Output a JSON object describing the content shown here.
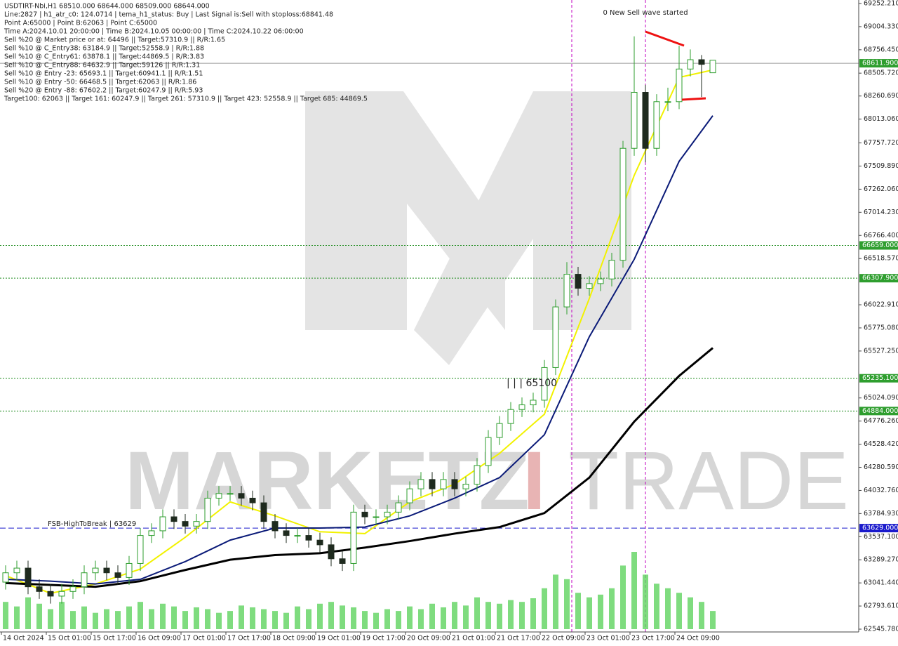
{
  "chart_data": {
    "type": "candlestick",
    "info_lines": [
      "USDTIRT-Nbi,H1  68510.000 68644.000 68509.000 68644.000",
      "Line:2827 | h1_atr_c0: 124.0714 | tema_h1_status: Buy | Last Signal is:Sell with stoploss:68841.48",
      "Point A:65000 | Point B:62063 | Point C:65000",
      "Time A:2024.10.01 20:00:00 | Time B:2024.10.05 00:00:00 | Time C:2024.10.22 06:00:00",
      "Sell %20 @ Market price or at: 64496 || Target:57310.9 || R/R:1.65",
      "Sell %10 @ C_Entry38: 63184.9 || Target:52558.9 | R/R:1.88",
      "Sell %10 @ C_Entry61: 63878.1 || Target:44869.5 | R/R:3.83",
      "Sell %10 @ C_Entry88: 64632.9 || Target:59126 || R/R:1.31",
      "Sell %10 @ Entry -23: 65693.1 || Target:60941.1 || R/R:1.51",
      "Sell %10 @ Entry -50: 66468.5 || Target:62063 || R/R:1.86",
      "Sell %20 @ Entry -88: 67602.2 || Target:60247.9 || R/R:5.93",
      "Target100: 62063 || Target 161: 60247.9 || Target 261: 57310.9 || Target 423: 52558.9 || Target 685: 44869.5"
    ],
    "annotations": [
      "0 New Sell wave started",
      "FSB-HighToBreak | 63629",
      "| | | 65100"
    ],
    "watermark": [
      "MARKETZ",
      "I",
      "TRADE"
    ],
    "categories": [
      "14 Oct 2024",
      null,
      null,
      null,
      "15 Oct 01:00",
      null,
      null,
      null,
      "15 Oct 17:00",
      null,
      null,
      null,
      "16 Oct 09:00",
      null,
      null,
      null,
      "17 Oct 01:00",
      null,
      null,
      null,
      "17 Oct 17:00",
      null,
      null,
      null,
      "18 Oct 09:00",
      null,
      null,
      null,
      "19 Oct 01:00",
      null,
      null,
      null,
      "19 Oct 17:00",
      null,
      null,
      null,
      "20 Oct 09:00",
      null,
      null,
      null,
      "21 Oct 01:00",
      null,
      null,
      null,
      "21 Oct 17:00",
      null,
      null,
      null,
      "22 Oct 09:00",
      null,
      null,
      null,
      "23 Oct 01:00",
      null,
      null,
      null,
      "23 Oct 17:00",
      null,
      null,
      null,
      "24 Oct 09:00",
      null,
      null,
      null
    ],
    "open": [
      63050,
      63150,
      63200,
      63000,
      62950,
      62900,
      62950,
      63000,
      63150,
      63200,
      63150,
      63100,
      63250,
      63550,
      63600,
      63750,
      63700,
      63650,
      63700,
      63950,
      64000,
      64000,
      63950,
      63900,
      63700,
      63600,
      63550,
      63550,
      63500,
      63450,
      63300,
      63250,
      63800,
      63750,
      63750,
      63800,
      63900,
      64050,
      64150,
      64050,
      64150,
      64050,
      64100,
      64300,
      64600,
      64750,
      64900,
      64950,
      65000,
      65350,
      66000,
      66350,
      66200,
      66250,
      66300,
      66500,
      67700,
      68300,
      67700,
      68200,
      68200,
      68550,
      68650,
      68510
    ],
    "high": [
      63230,
      63280,
      63280,
      63080,
      63030,
      63030,
      63080,
      63230,
      63280,
      63280,
      63230,
      63330,
      63630,
      63680,
      63830,
      63830,
      63780,
      63780,
      64030,
      64080,
      64080,
      64080,
      64030,
      63980,
      63780,
      63680,
      63630,
      63630,
      63580,
      63530,
      63380,
      63880,
      63880,
      63830,
      63880,
      63980,
      64130,
      64230,
      64230,
      64230,
      64230,
      64180,
      64380,
      64680,
      64830,
      64980,
      65030,
      65080,
      65430,
      66080,
      66480,
      66430,
      66330,
      66380,
      66580,
      67780,
      68900,
      68380,
      68280,
      68350,
      68800,
      68760,
      68700,
      68644
    ],
    "low": [
      62970,
      63070,
      62920,
      62870,
      62820,
      62820,
      62870,
      62920,
      63070,
      63070,
      63020,
      63020,
      63170,
      63470,
      63520,
      63620,
      63570,
      63570,
      63620,
      63870,
      63920,
      63870,
      63820,
      63620,
      63520,
      63470,
      63470,
      63420,
      63370,
      63220,
      63170,
      63170,
      63670,
      63670,
      63670,
      63720,
      63820,
      63970,
      63970,
      63970,
      63970,
      63970,
      64020,
      64220,
      64520,
      64670,
      64820,
      64870,
      64920,
      65270,
      65920,
      66120,
      66120,
      66170,
      66220,
      66420,
      67620,
      67550,
      67620,
      68100,
      68120,
      68470,
      68250,
      68509
    ],
    "close": [
      63150,
      63200,
      63000,
      62950,
      62900,
      62950,
      63000,
      63150,
      63200,
      63150,
      63100,
      63250,
      63550,
      63600,
      63750,
      63700,
      63650,
      63700,
      63950,
      64000,
      64000,
      63950,
      63900,
      63700,
      63600,
      63550,
      63550,
      63500,
      63450,
      63300,
      63250,
      63800,
      63750,
      63750,
      63800,
      63900,
      64050,
      64150,
      64050,
      64150,
      64050,
      64100,
      64300,
      64600,
      64750,
      64900,
      64950,
      65000,
      65350,
      66000,
      66350,
      66200,
      66250,
      66300,
      66500,
      67700,
      68300,
      67700,
      68200,
      68200,
      68550,
      68650,
      68600,
      68644
    ],
    "volume": [
      30,
      25,
      35,
      28,
      22,
      30,
      20,
      25,
      18,
      22,
      20,
      25,
      30,
      22,
      28,
      25,
      20,
      24,
      22,
      18,
      20,
      26,
      24,
      22,
      20,
      18,
      25,
      22,
      28,
      30,
      26,
      24,
      20,
      18,
      22,
      20,
      25,
      22,
      28,
      24,
      30,
      26,
      35,
      30,
      28,
      32,
      30,
      34,
      45,
      60,
      55,
      40,
      35,
      38,
      45,
      70,
      85,
      60,
      50,
      45,
      40,
      35,
      30,
      20
    ],
    "up_color": "#2e9e2e",
    "down_color": "#1e2a1e",
    "volume_color": "#5fd35f",
    "ma_lines": [
      {
        "color": "#f2f200",
        "x": [
          0,
          4,
          8,
          12,
          16,
          20,
          24,
          28,
          32,
          36,
          40,
          44,
          48,
          52,
          56,
          60,
          63
        ],
        "values": [
          63120,
          62930,
          63030,
          63190,
          63530,
          63910,
          63760,
          63590,
          63570,
          63910,
          64100,
          64430,
          64850,
          66090,
          67410,
          68460,
          68540
        ]
      },
      {
        "color": "#0a1a78",
        "x": [
          0,
          4,
          8,
          12,
          16,
          20,
          24,
          28,
          32,
          36,
          40,
          44,
          48,
          52,
          56,
          60,
          63
        ],
        "values": [
          63080,
          63060,
          63030,
          63080,
          63270,
          63500,
          63630,
          63630,
          63640,
          63760,
          63950,
          64170,
          64630,
          65680,
          66510,
          67560,
          68050
        ]
      },
      {
        "color": "#000000",
        "x": [
          0,
          4,
          8,
          12,
          16,
          20,
          24,
          28,
          32,
          36,
          40,
          44,
          48,
          52,
          56,
          60,
          63
        ],
        "values": [
          63040,
          63020,
          63000,
          63060,
          63180,
          63290,
          63340,
          63360,
          63420,
          63490,
          63570,
          63640,
          63790,
          64170,
          64770,
          65260,
          65560
        ]
      }
    ],
    "levels": [
      {
        "value": 68611.9,
        "label": "68611.900",
        "color": "#9a9a9a",
        "label_bg": "#2e9e2e",
        "dash": false
      },
      {
        "value": 66659,
        "label": "66659.000",
        "color": "#1a8a1a",
        "label_bg": "#2e9e2e",
        "dash": true
      },
      {
        "value": 66307.9,
        "label": "66307.900",
        "color": "#1a8a1a",
        "label_bg": "#2e9e2e",
        "dash": true
      },
      {
        "value": 65235.1,
        "label": "65235.100",
        "color": "#1a8a1a",
        "label_bg": "#2e9e2e",
        "dash": true
      },
      {
        "value": 64884,
        "label": "64884.000",
        "color": "#1a8a1a",
        "label_bg": "#2e9e2e",
        "dash": true
      },
      {
        "value": 63629,
        "label": "63629.000",
        "color": "#1a1acc",
        "label_bg": "#1a1acc",
        "dash": true
      }
    ],
    "ylim": [
      62545.78,
      69252.21
    ],
    "yticks": [
      {
        "value": 62545.78,
        "label": "62545.780"
      },
      {
        "value": 62793.61,
        "label": "62793.610"
      },
      {
        "value": 63041.44,
        "label": "63041.440"
      },
      {
        "value": 63289.27,
        "label": "63289.270"
      },
      {
        "value": 63537.1,
        "label": "63537.100"
      },
      {
        "value": 63784.93,
        "label": "63784.930"
      },
      {
        "value": 64032.76,
        "label": "64032.760"
      },
      {
        "value": 64280.59,
        "label": "64280.590"
      },
      {
        "value": 64528.42,
        "label": "64528.420"
      },
      {
        "value": 64776.26,
        "label": "64776.260"
      },
      {
        "value": 65024.09,
        "label": "65024.090"
      },
      {
        "value": 65527.25,
        "label": "65527.250"
      },
      {
        "value": 65775.08,
        "label": "65775.080"
      },
      {
        "value": 66022.91,
        "label": "66022.910"
      },
      {
        "value": 66518.57,
        "label": "66518.570"
      },
      {
        "value": 66766.4,
        "label": "66766.400"
      },
      {
        "value": 67014.23,
        "label": "67014.230"
      },
      {
        "value": 67262.06,
        "label": "67262.060"
      },
      {
        "value": 67509.89,
        "label": "67509.890"
      },
      {
        "value": 67757.72,
        "label": "67757.720"
      },
      {
        "value": 68013.06,
        "label": "68013.060"
      },
      {
        "value": 68260.69,
        "label": "68260.690"
      },
      {
        "value": 68505.72,
        "label": "68505.720"
      },
      {
        "value": 68756.45,
        "label": "68756.450"
      },
      {
        "value": 69004.33,
        "label": "69004.330"
      },
      {
        "value": 69252.21,
        "label": "69252.210"
      }
    ]
  }
}
